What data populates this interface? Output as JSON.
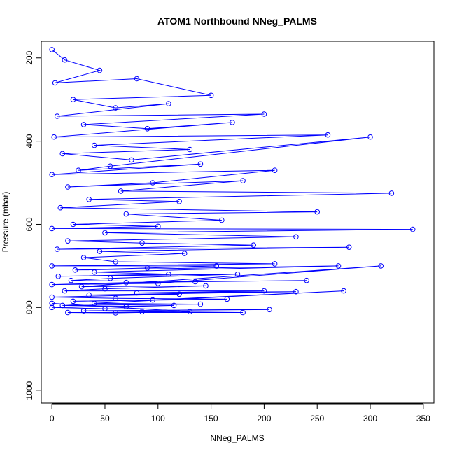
{
  "chart_data": {
    "type": "line",
    "title": "ATOM1 Northbound NNeg_PALMS",
    "xlabel": "NNeg_PALMS",
    "ylabel": "Pressure (mbar)",
    "xlim": [
      -10,
      360
    ],
    "ylim": [
      1030,
      160
    ],
    "y_reversed": true,
    "x_ticks": [
      0,
      50,
      100,
      150,
      200,
      250,
      300,
      350
    ],
    "y_ticks": [
      200,
      400,
      600,
      800,
      1000
    ],
    "grid": false,
    "legend": "none",
    "series_color": "#0000ff",
    "marker": "open-circle",
    "series": [
      {
        "x": [
          0,
          12,
          45,
          3,
          80,
          150,
          20,
          60,
          110,
          5,
          200,
          30,
          90,
          170,
          2,
          260,
          40,
          130,
          10,
          75,
          300,
          55,
          25,
          140,
          0,
          210,
          95,
          15,
          180,
          65,
          320,
          35,
          120,
          8,
          250,
          70,
          160,
          20,
          100,
          0,
          340,
          50,
          230,
          15,
          85,
          190,
          5,
          280,
          45,
          125,
          30,
          60,
          210,
          0,
          155,
          90,
          22,
          270,
          40,
          110,
          6,
          175,
          55,
          18,
          135,
          240,
          70,
          0,
          100,
          310,
          28,
          145,
          50,
          12,
          200,
          80,
          230,
          35,
          120,
          0,
          60,
          165,
          20,
          95,
          275,
          40,
          140,
          10,
          70,
          115,
          0,
          50,
          205,
          30,
          85,
          180,
          15,
          60,
          130,
          0
        ],
        "y": [
          180,
          205,
          230,
          260,
          250,
          290,
          300,
          320,
          310,
          340,
          335,
          360,
          370,
          355,
          390,
          385,
          410,
          420,
          430,
          445,
          390,
          460,
          470,
          455,
          480,
          470,
          500,
          510,
          495,
          520,
          525,
          540,
          545,
          560,
          570,
          575,
          590,
          600,
          605,
          610,
          612,
          620,
          630,
          640,
          645,
          650,
          660,
          655,
          665,
          670,
          680,
          690,
          695,
          700,
          700,
          705,
          710,
          700,
          715,
          720,
          725,
          720,
          730,
          735,
          738,
          735,
          740,
          745,
          742,
          700,
          750,
          748,
          755,
          760,
          760,
          765,
          762,
          770,
          768,
          775,
          778,
          780,
          785,
          782,
          760,
          790,
          792,
          795,
          798,
          795,
          800,
          803,
          805,
          808,
          810,
          812,
          812,
          813,
          810,
          790
        ]
      }
    ]
  }
}
